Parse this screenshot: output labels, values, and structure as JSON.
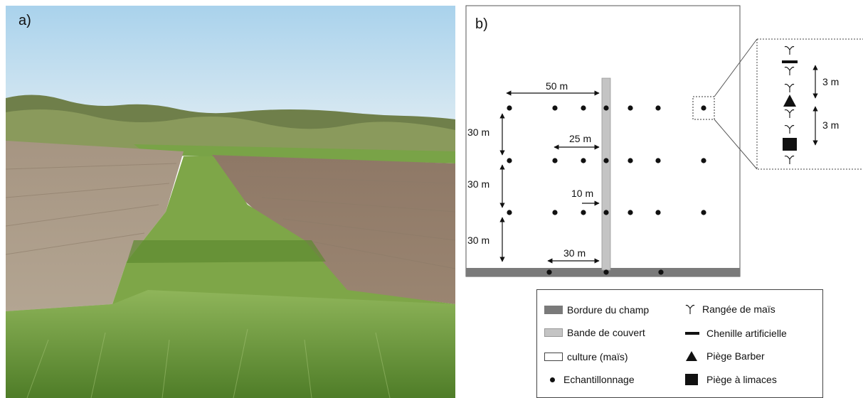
{
  "panel_a": {
    "label": "a)"
  },
  "panel_b": {
    "label": "b)",
    "measures": {
      "m50": "50 m",
      "m25": "25 m",
      "m10": "10 m",
      "m30_bottom": "30 m",
      "left_30_1": "30 m",
      "left_30_2": "30 m",
      "left_30_3": "30 m"
    },
    "zoom": {
      "m3_top": "3 m",
      "m3_bottom": "3 m"
    }
  },
  "legend": {
    "border": "Bordure du champ",
    "strip": "Bande de couvert",
    "crop": "culture (maïs)",
    "sampling": "Echantillonnage",
    "maize_row": "Rangée de maïs",
    "caterpillar": "Chenille artificielle",
    "barber": "Piège Barber",
    "slug": "Piège à limaces"
  },
  "colors": {
    "field_border": "#7a7a7a",
    "cover_strip": "#c4c4c4",
    "crop": "#ffffff",
    "sky": "#bfdcee",
    "grass": "#6d9a3a",
    "soil": "#9c8a76"
  }
}
